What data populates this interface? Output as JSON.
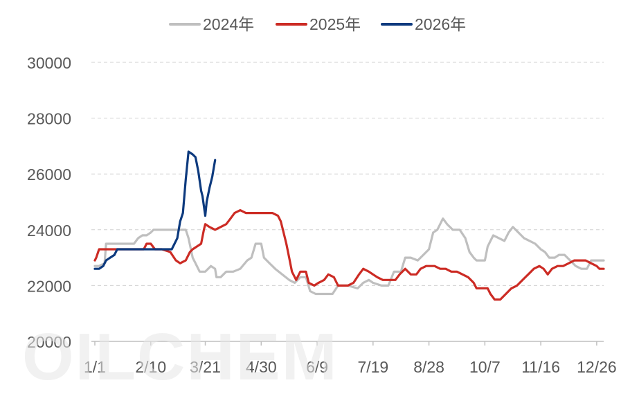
{
  "chart_data": {
    "type": "line",
    "title": "",
    "xlabel": "",
    "ylabel": "",
    "ylim": [
      20000,
      30000
    ],
    "yticks": [
      "20000",
      "22000",
      "24000",
      "26000",
      "28000",
      "30000"
    ],
    "xticks": [
      "1/1",
      "2/10",
      "3/21",
      "4/30",
      "6/9",
      "7/19",
      "8/28",
      "10/7",
      "11/16",
      "12/26"
    ],
    "grid": "horizontal dashed",
    "legend": "top-center",
    "watermark": "OILCHEM",
    "series": [
      {
        "name": "2024年",
        "color": "#bfbfbf",
        "points": [
          [
            "1/1",
            22700
          ],
          [
            "1/4",
            22700
          ],
          [
            "1/8",
            22800
          ],
          [
            "1/9",
            23500
          ],
          [
            "1/15",
            23500
          ],
          [
            "1/22",
            23500
          ],
          [
            "1/29",
            23500
          ],
          [
            "2/1",
            23700
          ],
          [
            "2/4",
            23800
          ],
          [
            "2/7",
            23800
          ],
          [
            "2/10",
            23900
          ],
          [
            "2/12",
            24000
          ],
          [
            "2/20",
            24000
          ],
          [
            "2/28",
            24000
          ],
          [
            "3/7",
            24000
          ],
          [
            "3/9",
            23700
          ],
          [
            "3/12",
            23000
          ],
          [
            "3/14",
            22800
          ],
          [
            "3/17",
            22500
          ],
          [
            "3/21",
            22500
          ],
          [
            "3/25",
            22700
          ],
          [
            "3/28",
            22600
          ],
          [
            "3/29",
            22300
          ],
          [
            "4/1",
            22300
          ],
          [
            "4/5",
            22500
          ],
          [
            "4/10",
            22500
          ],
          [
            "4/15",
            22600
          ],
          [
            "4/20",
            22900
          ],
          [
            "4/23",
            23000
          ],
          [
            "4/26",
            23500
          ],
          [
            "4/30",
            23500
          ],
          [
            "5/2",
            23000
          ],
          [
            "5/6",
            22800
          ],
          [
            "5/10",
            22600
          ],
          [
            "5/15",
            22400
          ],
          [
            "5/20",
            22200
          ],
          [
            "5/24",
            22100
          ],
          [
            "5/28",
            22300
          ],
          [
            "6/1",
            22300
          ],
          [
            "6/4",
            21800
          ],
          [
            "6/8",
            21700
          ],
          [
            "6/14",
            21700
          ],
          [
            "6/20",
            21700
          ],
          [
            "6/24",
            22000
          ],
          [
            "7/1",
            22000
          ],
          [
            "7/8",
            21900
          ],
          [
            "7/12",
            22100
          ],
          [
            "7/16",
            22200
          ],
          [
            "7/19",
            22100
          ],
          [
            "7/25",
            22000
          ],
          [
            "7/30",
            22000
          ],
          [
            "8/3",
            22500
          ],
          [
            "8/8",
            22500
          ],
          [
            "8/11",
            23000
          ],
          [
            "8/15",
            23000
          ],
          [
            "8/20",
            22900
          ],
          [
            "8/24",
            23100
          ],
          [
            "8/28",
            23300
          ],
          [
            "8/31",
            23900
          ],
          [
            "9/3",
            24000
          ],
          [
            "9/7",
            24400
          ],
          [
            "9/10",
            24200
          ],
          [
            "9/14",
            24000
          ],
          [
            "9/19",
            24000
          ],
          [
            "9/23",
            23700
          ],
          [
            "9/26",
            23200
          ],
          [
            "9/29",
            23000
          ],
          [
            "10/1",
            22900
          ],
          [
            "10/7",
            22900
          ],
          [
            "10/9",
            23400
          ],
          [
            "10/13",
            23800
          ],
          [
            "10/17",
            23700
          ],
          [
            "10/21",
            23600
          ],
          [
            "10/24",
            23900
          ],
          [
            "10/27",
            24100
          ],
          [
            "10/31",
            23900
          ],
          [
            "11/4",
            23700
          ],
          [
            "11/8",
            23600
          ],
          [
            "11/12",
            23500
          ],
          [
            "11/16",
            23300
          ],
          [
            "11/19",
            23200
          ],
          [
            "11/22",
            23000
          ],
          [
            "11/26",
            23000
          ],
          [
            "11/29",
            23100
          ],
          [
            "12/3",
            23100
          ],
          [
            "12/7",
            22900
          ],
          [
            "12/11",
            22700
          ],
          [
            "12/15",
            22600
          ],
          [
            "12/19",
            22600
          ],
          [
            "12/22",
            22900
          ],
          [
            "12/26",
            22900
          ],
          [
            "12/31",
            22900
          ]
        ]
      },
      {
        "name": "2025年",
        "color": "#cc2b24",
        "points": [
          [
            "1/1",
            22900
          ],
          [
            "1/2",
            23000
          ],
          [
            "1/4",
            23300
          ],
          [
            "1/8",
            23300
          ],
          [
            "1/12",
            23300
          ],
          [
            "1/17",
            23300
          ],
          [
            "1/23",
            23300
          ],
          [
            "1/28",
            23300
          ],
          [
            "2/1",
            23300
          ],
          [
            "2/5",
            23300
          ],
          [
            "2/7",
            23500
          ],
          [
            "2/10",
            23500
          ],
          [
            "2/13",
            23300
          ],
          [
            "2/18",
            23300
          ],
          [
            "2/24",
            23200
          ],
          [
            "2/28",
            22900
          ],
          [
            "3/3",
            22800
          ],
          [
            "3/7",
            22900
          ],
          [
            "3/10",
            23200
          ],
          [
            "3/12",
            23300
          ],
          [
            "3/15",
            23400
          ],
          [
            "3/18",
            23500
          ],
          [
            "3/20",
            24000
          ],
          [
            "3/21",
            24200
          ],
          [
            "3/24",
            24100
          ],
          [
            "3/28",
            24000
          ],
          [
            "4/1",
            24100
          ],
          [
            "4/5",
            24200
          ],
          [
            "4/8",
            24400
          ],
          [
            "4/11",
            24600
          ],
          [
            "4/15",
            24700
          ],
          [
            "4/19",
            24600
          ],
          [
            "4/23",
            24600
          ],
          [
            "4/27",
            24600
          ],
          [
            "4/30",
            24600
          ],
          [
            "5/4",
            24600
          ],
          [
            "5/8",
            24600
          ],
          [
            "5/12",
            24500
          ],
          [
            "5/14",
            24300
          ],
          [
            "5/16",
            23900
          ],
          [
            "5/18",
            23500
          ],
          [
            "5/20",
            23000
          ],
          [
            "5/22",
            22500
          ],
          [
            "5/25",
            22200
          ],
          [
            "5/28",
            22500
          ],
          [
            "6/1",
            22500
          ],
          [
            "6/3",
            22100
          ],
          [
            "6/7",
            22000
          ],
          [
            "6/10",
            22100
          ],
          [
            "6/14",
            22200
          ],
          [
            "6/17",
            22400
          ],
          [
            "6/21",
            22300
          ],
          [
            "6/24",
            22000
          ],
          [
            "6/28",
            22000
          ],
          [
            "7/1",
            22000
          ],
          [
            "7/5",
            22100
          ],
          [
            "7/9",
            22400
          ],
          [
            "7/12",
            22600
          ],
          [
            "7/16",
            22500
          ],
          [
            "7/19",
            22400
          ],
          [
            "7/22",
            22300
          ],
          [
            "7/26",
            22200
          ],
          [
            "7/30",
            22200
          ],
          [
            "8/4",
            22200
          ],
          [
            "8/7",
            22400
          ],
          [
            "8/11",
            22600
          ],
          [
            "8/15",
            22400
          ],
          [
            "8/19",
            22400
          ],
          [
            "8/22",
            22600
          ],
          [
            "8/26",
            22700
          ],
          [
            "8/28",
            22700
          ],
          [
            "9/1",
            22700
          ],
          [
            "9/5",
            22600
          ],
          [
            "9/9",
            22600
          ],
          [
            "9/13",
            22500
          ],
          [
            "9/17",
            22500
          ],
          [
            "9/21",
            22400
          ],
          [
            "9/25",
            22300
          ],
          [
            "9/29",
            22100
          ],
          [
            "10/1",
            21900
          ],
          [
            "10/5",
            21900
          ],
          [
            "10/9",
            21900
          ],
          [
            "10/11",
            21700
          ],
          [
            "10/14",
            21500
          ],
          [
            "10/18",
            21500
          ],
          [
            "10/22",
            21700
          ],
          [
            "10/26",
            21900
          ],
          [
            "10/30",
            22000
          ],
          [
            "11/3",
            22200
          ],
          [
            "11/7",
            22400
          ],
          [
            "11/11",
            22600
          ],
          [
            "11/15",
            22700
          ],
          [
            "11/18",
            22600
          ],
          [
            "11/21",
            22400
          ],
          [
            "11/24",
            22600
          ],
          [
            "11/28",
            22700
          ],
          [
            "12/2",
            22700
          ],
          [
            "12/6",
            22800
          ],
          [
            "12/10",
            22900
          ],
          [
            "12/14",
            22900
          ],
          [
            "12/18",
            22900
          ],
          [
            "12/22",
            22800
          ],
          [
            "12/26",
            22700
          ],
          [
            "12/28",
            22600
          ],
          [
            "12/31",
            22600
          ]
        ]
      },
      {
        "name": "2026年",
        "color": "#0d3a7e",
        "points": [
          [
            "1/1",
            22600
          ],
          [
            "1/4",
            22600
          ],
          [
            "1/7",
            22700
          ],
          [
            "1/9",
            22900
          ],
          [
            "1/12",
            23000
          ],
          [
            "1/15",
            23100
          ],
          [
            "1/17",
            23300
          ],
          [
            "1/20",
            23300
          ],
          [
            "1/24",
            23300
          ],
          [
            "1/28",
            23300
          ],
          [
            "2/1",
            23300
          ],
          [
            "2/5",
            23300
          ],
          [
            "2/10",
            23300
          ],
          [
            "2/15",
            23300
          ],
          [
            "2/20",
            23300
          ],
          [
            "2/25",
            23300
          ],
          [
            "2/27",
            23500
          ],
          [
            "3/1",
            23700
          ],
          [
            "3/3",
            24300
          ],
          [
            "3/5",
            24600
          ],
          [
            "3/7",
            25800
          ],
          [
            "3/9",
            26800
          ],
          [
            "3/12",
            26700
          ],
          [
            "3/14",
            26600
          ],
          [
            "3/16",
            26100
          ],
          [
            "3/18",
            25400
          ],
          [
            "3/19",
            25200
          ],
          [
            "3/21",
            24500
          ],
          [
            "3/22",
            25000
          ],
          [
            "3/24",
            25500
          ],
          [
            "3/26",
            25900
          ],
          [
            "3/28",
            26500
          ]
        ]
      }
    ]
  }
}
